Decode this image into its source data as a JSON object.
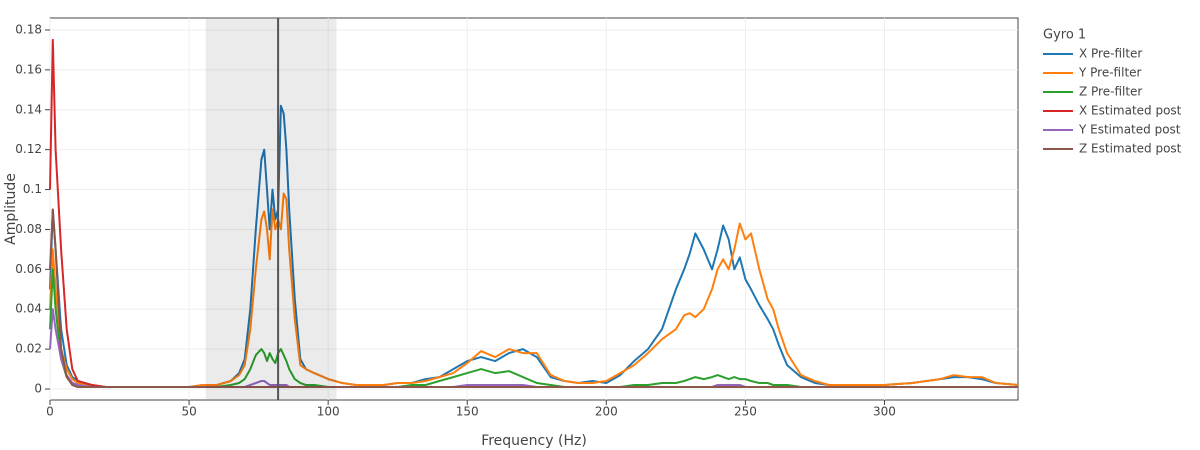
{
  "chart_data": {
    "type": "line",
    "xlabel": "Frequency (Hz)",
    "ylabel": "Amplitude",
    "legend_title": "Gyro 1",
    "legend": "outside-right",
    "grid": true,
    "xlim": [
      0,
      348
    ],
    "ylim": [
      -0.0055,
      0.186
    ],
    "xticks": [
      0,
      50,
      100,
      150,
      200,
      250,
      300
    ],
    "yticks": [
      0,
      0.02,
      0.04,
      0.06,
      0.08,
      0.1,
      0.12,
      0.14,
      0.16,
      0.18
    ],
    "highlight_band": [
      56,
      103
    ],
    "marker_line": 82,
    "x": [
      0,
      1,
      2,
      4,
      6,
      8,
      10,
      15,
      20,
      25,
      30,
      35,
      40,
      45,
      50,
      55,
      60,
      65,
      68,
      70,
      72,
      74,
      76,
      77,
      78,
      79,
      80,
      81,
      82,
      83,
      84,
      85,
      86,
      88,
      90,
      92,
      95,
      100,
      105,
      110,
      115,
      120,
      125,
      130,
      135,
      140,
      145,
      150,
      155,
      160,
      165,
      170,
      175,
      180,
      185,
      190,
      195,
      200,
      205,
      210,
      215,
      220,
      225,
      228,
      230,
      232,
      235,
      238,
      240,
      242,
      244,
      246,
      248,
      250,
      252,
      255,
      258,
      260,
      262,
      265,
      270,
      275,
      280,
      290,
      300,
      310,
      320,
      325,
      330,
      335,
      340,
      348
    ],
    "series": [
      {
        "name": "X Pre-filter",
        "color": "#1f77b4",
        "values": [
          0.05,
          0.09,
          0.07,
          0.03,
          0.012,
          0.006,
          0.004,
          0.002,
          0.001,
          0.001,
          0.001,
          0.001,
          0.001,
          0.001,
          0.001,
          0.002,
          0.002,
          0.004,
          0.008,
          0.015,
          0.04,
          0.08,
          0.115,
          0.12,
          0.1,
          0.08,
          0.1,
          0.085,
          0.09,
          0.142,
          0.138,
          0.12,
          0.09,
          0.045,
          0.015,
          0.01,
          0.008,
          0.005,
          0.003,
          0.002,
          0.002,
          0.002,
          0.003,
          0.003,
          0.005,
          0.006,
          0.01,
          0.014,
          0.016,
          0.014,
          0.018,
          0.02,
          0.016,
          0.006,
          0.004,
          0.003,
          0.004,
          0.003,
          0.007,
          0.014,
          0.02,
          0.03,
          0.05,
          0.06,
          0.068,
          0.078,
          0.07,
          0.06,
          0.07,
          0.082,
          0.075,
          0.06,
          0.066,
          0.055,
          0.05,
          0.042,
          0.035,
          0.03,
          0.022,
          0.012,
          0.006,
          0.003,
          0.002,
          0.002,
          0.002,
          0.003,
          0.005,
          0.006,
          0.006,
          0.005,
          0.003,
          0.002
        ]
      },
      {
        "name": "Y Pre-filter",
        "color": "#ff7f0e",
        "values": [
          0.04,
          0.07,
          0.05,
          0.02,
          0.01,
          0.005,
          0.003,
          0.002,
          0.001,
          0.001,
          0.001,
          0.001,
          0.001,
          0.001,
          0.001,
          0.002,
          0.002,
          0.004,
          0.007,
          0.012,
          0.03,
          0.06,
          0.085,
          0.089,
          0.08,
          0.065,
          0.09,
          0.08,
          0.085,
          0.08,
          0.098,
          0.095,
          0.07,
          0.035,
          0.012,
          0.01,
          0.008,
          0.005,
          0.003,
          0.002,
          0.002,
          0.002,
          0.003,
          0.003,
          0.004,
          0.006,
          0.008,
          0.013,
          0.019,
          0.016,
          0.02,
          0.018,
          0.018,
          0.007,
          0.004,
          0.003,
          0.003,
          0.004,
          0.008,
          0.012,
          0.018,
          0.025,
          0.03,
          0.037,
          0.038,
          0.036,
          0.04,
          0.05,
          0.06,
          0.065,
          0.06,
          0.07,
          0.083,
          0.075,
          0.078,
          0.06,
          0.045,
          0.04,
          0.03,
          0.018,
          0.007,
          0.004,
          0.002,
          0.002,
          0.002,
          0.003,
          0.005,
          0.007,
          0.006,
          0.006,
          0.003,
          0.002
        ]
      },
      {
        "name": "Z Pre-filter",
        "color": "#2ca02c",
        "values": [
          0.03,
          0.06,
          0.04,
          0.015,
          0.006,
          0.003,
          0.002,
          0.001,
          0.001,
          0.001,
          0.001,
          0.001,
          0.001,
          0.001,
          0.001,
          0.001,
          0.001,
          0.002,
          0.003,
          0.005,
          0.01,
          0.017,
          0.02,
          0.018,
          0.014,
          0.018,
          0.015,
          0.013,
          0.018,
          0.02,
          0.017,
          0.014,
          0.01,
          0.005,
          0.003,
          0.002,
          0.002,
          0.001,
          0.001,
          0.001,
          0.001,
          0.001,
          0.001,
          0.002,
          0.002,
          0.004,
          0.006,
          0.008,
          0.01,
          0.008,
          0.009,
          0.006,
          0.003,
          0.002,
          0.001,
          0.001,
          0.001,
          0.001,
          0.001,
          0.002,
          0.002,
          0.003,
          0.003,
          0.004,
          0.005,
          0.006,
          0.005,
          0.006,
          0.007,
          0.006,
          0.005,
          0.006,
          0.005,
          0.005,
          0.004,
          0.003,
          0.003,
          0.002,
          0.002,
          0.002,
          0.001,
          0.001,
          0.001,
          0.001,
          0.001,
          0.001,
          0.001,
          0.001,
          0.001,
          0.001,
          0.001,
          0.001
        ]
      },
      {
        "name": "X Estimated post",
        "color": "#d62728",
        "values": [
          0.1,
          0.175,
          0.12,
          0.07,
          0.03,
          0.01,
          0.004,
          0.002,
          0.001,
          0.001,
          0.001,
          0.001,
          0.001,
          0.001,
          0.001,
          0.001,
          0.001,
          0.001,
          0.001,
          0.001,
          0.001,
          0.001,
          0.001,
          0.001,
          0.001,
          0.001,
          0.001,
          0.001,
          0.001,
          0.001,
          0.001,
          0.001,
          0.001,
          0.001,
          0.001,
          0.001,
          0.001,
          0.001,
          0.001,
          0.001,
          0.001,
          0.001,
          0.001,
          0.001,
          0.001,
          0.001,
          0.001,
          0.001,
          0.001,
          0.001,
          0.001,
          0.001,
          0.001,
          0.001,
          0.001,
          0.001,
          0.001,
          0.001,
          0.001,
          0.001,
          0.001,
          0.001,
          0.001,
          0.001,
          0.001,
          0.001,
          0.001,
          0.001,
          0.001,
          0.001,
          0.001,
          0.001,
          0.001,
          0.001,
          0.001,
          0.001,
          0.001,
          0.001,
          0.001,
          0.001,
          0.001,
          0.001,
          0.001,
          0.001,
          0.001,
          0.001,
          0.001,
          0.001,
          0.001,
          0.001,
          0.001,
          0.001
        ]
      },
      {
        "name": "Y Estimated post",
        "color": "#9467bd",
        "values": [
          0.02,
          0.04,
          0.03,
          0.015,
          0.007,
          0.003,
          0.002,
          0.001,
          0.001,
          0.001,
          0.001,
          0.001,
          0.001,
          0.001,
          0.001,
          0.001,
          0.001,
          0.001,
          0.001,
          0.001,
          0.002,
          0.003,
          0.004,
          0.004,
          0.003,
          0.002,
          0.002,
          0.002,
          0.002,
          0.002,
          0.002,
          0.002,
          0.001,
          0.001,
          0.001,
          0.001,
          0.001,
          0.001,
          0.001,
          0.001,
          0.001,
          0.001,
          0.001,
          0.001,
          0.001,
          0.001,
          0.001,
          0.002,
          0.002,
          0.002,
          0.002,
          0.002,
          0.001,
          0.001,
          0.001,
          0.001,
          0.001,
          0.001,
          0.001,
          0.001,
          0.001,
          0.001,
          0.001,
          0.001,
          0.001,
          0.001,
          0.001,
          0.001,
          0.002,
          0.002,
          0.002,
          0.002,
          0.002,
          0.001,
          0.001,
          0.001,
          0.001,
          0.001,
          0.001,
          0.001,
          0.001,
          0.001,
          0.001,
          0.001,
          0.001,
          0.001,
          0.001,
          0.001,
          0.001,
          0.001,
          0.001,
          0.001
        ]
      },
      {
        "name": "Z Estimated post",
        "color": "#8c564b",
        "values": [
          0.06,
          0.09,
          0.07,
          0.02,
          0.006,
          0.002,
          0.001,
          0.001,
          0.001,
          0.001,
          0.001,
          0.001,
          0.001,
          0.001,
          0.001,
          0.001,
          0.001,
          0.001,
          0.001,
          0.001,
          0.001,
          0.001,
          0.001,
          0.001,
          0.001,
          0.001,
          0.001,
          0.001,
          0.001,
          0.001,
          0.001,
          0.001,
          0.001,
          0.001,
          0.001,
          0.001,
          0.001,
          0.001,
          0.001,
          0.001,
          0.001,
          0.001,
          0.001,
          0.001,
          0.001,
          0.001,
          0.001,
          0.001,
          0.001,
          0.001,
          0.001,
          0.001,
          0.001,
          0.001,
          0.001,
          0.001,
          0.001,
          0.001,
          0.001,
          0.001,
          0.001,
          0.001,
          0.001,
          0.001,
          0.001,
          0.001,
          0.001,
          0.001,
          0.001,
          0.001,
          0.001,
          0.001,
          0.001,
          0.001,
          0.001,
          0.001,
          0.001,
          0.001,
          0.001,
          0.001,
          0.001,
          0.001,
          0.001,
          0.001,
          0.001,
          0.001,
          0.001,
          0.001,
          0.001,
          0.001,
          0.001,
          0.001
        ]
      }
    ]
  }
}
